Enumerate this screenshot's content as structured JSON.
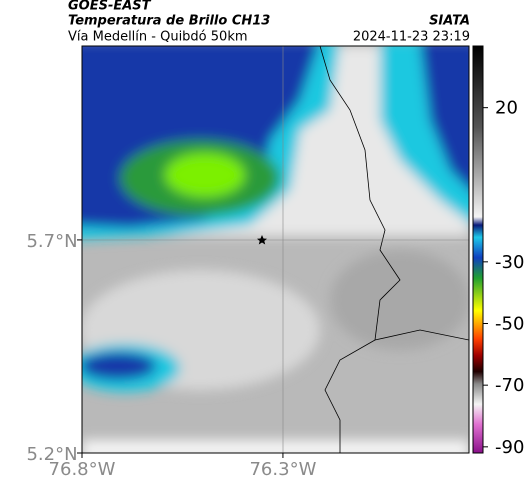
{
  "header": {
    "satellite": "GOES-EAST",
    "title": "Temperatura de Brillo CH13",
    "subtitle": "Vía Medellín - Quibdó 50km",
    "source": "SIATA",
    "datetime": "2024-11-23 23:19"
  },
  "map": {
    "xlim": [
      -76.8,
      -75.837
    ],
    "ylim": [
      5.2,
      6.155
    ],
    "xticks": [
      {
        "value": -76.8,
        "label": "76.8°W"
      },
      {
        "value": -76.3,
        "label": "76.3°W"
      }
    ],
    "yticks": [
      {
        "value": 5.2,
        "label": "5.2°N"
      },
      {
        "value": 5.7,
        "label": "5.7°N"
      }
    ]
  },
  "colorbar": {
    "lim": [
      -92,
      40
    ],
    "ticks": [
      20,
      -30,
      -50,
      -70,
      -90
    ]
  }
}
